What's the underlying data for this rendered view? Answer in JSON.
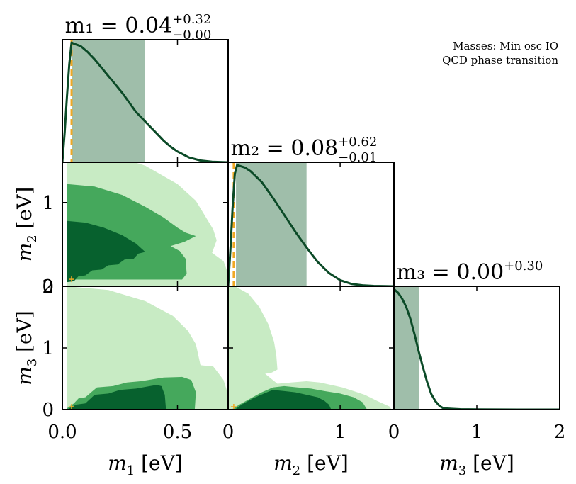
{
  "chart_data": {
    "type": "corner",
    "annotation": [
      "Masses: Min osc IO",
      "QCD phase transition"
    ],
    "colors": {
      "line": "#0b4a27",
      "band": "#9fbeaa",
      "truth": "#f0a824",
      "contour_outer": "#c8ebc4",
      "contour_mid": "#45a85c",
      "contour_inner": "#07612e",
      "frame": "#000000"
    },
    "parameters": [
      {
        "name": "m1",
        "label_var": "m",
        "label_sub": "1",
        "label_unit": " [eV]",
        "range": [
          0.0,
          0.72
        ],
        "ticks": [
          0.0,
          0.5
        ],
        "tick_labels": [
          "0.0",
          "0.5"
        ],
        "title_main": "m₁ = 0.04",
        "title_up": "+0.32",
        "title_down": "−0.00",
        "truth": 0.04,
        "band": [
          0.04,
          0.36
        ]
      },
      {
        "name": "m2",
        "label_var": "m",
        "label_sub": "2",
        "label_unit": " [eV]",
        "range": [
          0.0,
          1.48
        ],
        "ticks": [
          0,
          1
        ],
        "tick_labels": [
          "0",
          "1"
        ],
        "title_main": "m₂ = 0.08",
        "title_up": "+0.62",
        "title_down": "−0.01",
        "truth": 0.05,
        "band": [
          0.07,
          0.7
        ]
      },
      {
        "name": "m3",
        "label_var": "m",
        "label_sub": "3",
        "label_unit": " [eV]",
        "range": [
          0.0,
          2.0
        ],
        "ticks": [
          0,
          1,
          2
        ],
        "tick_labels": [
          "0",
          "1",
          "2"
        ],
        "title_main": "m₃ = 0.00",
        "title_up": "+0.30",
        "title_down": "",
        "truth": 0.0,
        "band": [
          0.0,
          0.3
        ]
      }
    ],
    "marginals": [
      {
        "param": "m1",
        "x": [
          0.0,
          0.01,
          0.02,
          0.03,
          0.04,
          0.05,
          0.08,
          0.11,
          0.14,
          0.17,
          0.2,
          0.23,
          0.26,
          0.29,
          0.32,
          0.35,
          0.38,
          0.41,
          0.44,
          0.47,
          0.5,
          0.55,
          0.6,
          0.65,
          0.72
        ],
        "density": [
          0.0,
          0.25,
          0.55,
          0.82,
          1.0,
          0.99,
          0.97,
          0.92,
          0.86,
          0.79,
          0.72,
          0.65,
          0.58,
          0.5,
          0.42,
          0.36,
          0.3,
          0.24,
          0.18,
          0.13,
          0.09,
          0.04,
          0.015,
          0.005,
          0.0
        ]
      },
      {
        "param": "m2",
        "x": [
          0.0,
          0.02,
          0.04,
          0.06,
          0.08,
          0.1,
          0.15,
          0.2,
          0.3,
          0.4,
          0.5,
          0.6,
          0.7,
          0.8,
          0.9,
          1.0,
          1.1,
          1.2,
          1.3,
          1.4,
          1.48
        ],
        "density": [
          0.0,
          0.3,
          0.65,
          0.93,
          1.0,
          0.995,
          0.98,
          0.95,
          0.86,
          0.73,
          0.59,
          0.45,
          0.32,
          0.2,
          0.11,
          0.05,
          0.02,
          0.008,
          0.003,
          0.001,
          0.0
        ]
      },
      {
        "param": "m3",
        "x": [
          0.0,
          0.05,
          0.1,
          0.15,
          0.2,
          0.25,
          0.3,
          0.35,
          0.4,
          0.45,
          0.5,
          0.55,
          0.6,
          0.8,
          1.0,
          1.5,
          2.0
        ],
        "density": [
          1.0,
          0.97,
          0.92,
          0.85,
          0.75,
          0.62,
          0.48,
          0.35,
          0.23,
          0.13,
          0.07,
          0.03,
          0.01,
          0.003,
          0.001,
          0.0,
          0.0
        ]
      }
    ],
    "contours": [
      {
        "x": "m1",
        "y": "m2",
        "levels": [
          {
            "level": "outer",
            "points": [
              [
                0.02,
                1.6
              ],
              [
                0.22,
                1.56
              ],
              [
                0.36,
                1.44
              ],
              [
                0.5,
                1.22
              ],
              [
                0.58,
                1.02
              ],
              [
                0.62,
                0.84
              ],
              [
                0.655,
                0.68
              ],
              [
                0.67,
                0.55
              ],
              [
                0.65,
                0.4
              ],
              [
                0.7,
                0.3
              ],
              [
                0.72,
                0.15
              ],
              [
                0.72,
                0.0
              ],
              [
                0.02,
                0.0
              ]
            ]
          },
          {
            "level": "mid",
            "points": [
              [
                0.02,
                1.22
              ],
              [
                0.14,
                1.19
              ],
              [
                0.26,
                1.09
              ],
              [
                0.36,
                0.95
              ],
              [
                0.44,
                0.82
              ],
              [
                0.5,
                0.7
              ],
              [
                0.535,
                0.64
              ],
              [
                0.58,
                0.6
              ],
              [
                0.53,
                0.53
              ],
              [
                0.47,
                0.48
              ],
              [
                0.51,
                0.42
              ],
              [
                0.535,
                0.33
              ],
              [
                0.54,
                0.15
              ],
              [
                0.52,
                0.08
              ],
              [
                0.02,
                0.08
              ]
            ]
          },
          {
            "level": "inner",
            "points": [
              [
                0.02,
                0.78
              ],
              [
                0.1,
                0.76
              ],
              [
                0.18,
                0.7
              ],
              [
                0.26,
                0.61
              ],
              [
                0.32,
                0.51
              ],
              [
                0.36,
                0.41
              ],
              [
                0.33,
                0.39
              ],
              [
                0.31,
                0.33
              ],
              [
                0.27,
                0.32
              ],
              [
                0.24,
                0.26
              ],
              [
                0.2,
                0.25
              ],
              [
                0.17,
                0.2
              ],
              [
                0.13,
                0.19
              ],
              [
                0.1,
                0.13
              ],
              [
                0.07,
                0.12
              ],
              [
                0.05,
                0.06
              ],
              [
                0.02,
                0.05
              ]
            ]
          }
        ]
      },
      {
        "x": "m1",
        "y": "m3",
        "levels": [
          {
            "level": "outer",
            "points": [
              [
                0.02,
                2.0
              ],
              [
                0.2,
                1.94
              ],
              [
                0.36,
                1.76
              ],
              [
                0.48,
                1.52
              ],
              [
                0.545,
                1.28
              ],
              [
                0.58,
                1.06
              ],
              [
                0.6,
                0.72
              ],
              [
                0.655,
                0.7
              ],
              [
                0.68,
                0.58
              ],
              [
                0.7,
                0.48
              ],
              [
                0.715,
                0.3
              ],
              [
                0.72,
                0.0
              ],
              [
                0.02,
                0.0
              ]
            ]
          },
          {
            "level": "mid",
            "points": [
              [
                0.02,
                0.02
              ],
              [
                0.05,
                0.1
              ],
              [
                0.07,
                0.18
              ],
              [
                0.1,
                0.2
              ],
              [
                0.15,
                0.36
              ],
              [
                0.22,
                0.38
              ],
              [
                0.28,
                0.44
              ],
              [
                0.34,
                0.46
              ],
              [
                0.44,
                0.52
              ],
              [
                0.52,
                0.53
              ],
              [
                0.56,
                0.48
              ],
              [
                0.58,
                0.28
              ],
              [
                0.575,
                0.0
              ],
              [
                0.02,
                0.0
              ]
            ]
          },
          {
            "level": "inner",
            "points": [
              [
                0.02,
                0.0
              ],
              [
                0.06,
                0.08
              ],
              [
                0.1,
                0.1
              ],
              [
                0.14,
                0.24
              ],
              [
                0.2,
                0.26
              ],
              [
                0.25,
                0.32
              ],
              [
                0.32,
                0.34
              ],
              [
                0.38,
                0.38
              ],
              [
                0.41,
                0.4
              ],
              [
                0.43,
                0.38
              ],
              [
                0.445,
                0.24
              ],
              [
                0.45,
                0.0
              ]
            ]
          }
        ]
      },
      {
        "x": "m2",
        "y": "m3",
        "levels": [
          {
            "level": "outer",
            "points": [
              [
                0.0,
                2.0
              ],
              [
                0.06,
                2.0
              ],
              [
                0.18,
                1.88
              ],
              [
                0.28,
                1.66
              ],
              [
                0.36,
                1.38
              ],
              [
                0.41,
                1.1
              ],
              [
                0.43,
                0.88
              ],
              [
                0.44,
                0.65
              ],
              [
                0.39,
                0.6
              ],
              [
                0.33,
                0.58
              ],
              [
                0.44,
                0.42
              ],
              [
                0.56,
                0.44
              ],
              [
                0.7,
                0.46
              ],
              [
                0.82,
                0.44
              ],
              [
                0.92,
                0.4
              ],
              [
                1.02,
                0.36
              ],
              [
                1.12,
                0.3
              ],
              [
                1.22,
                0.24
              ],
              [
                1.33,
                0.14
              ],
              [
                1.44,
                0.05
              ],
              [
                1.46,
                0.0
              ],
              [
                0.0,
                0.0
              ]
            ]
          },
          {
            "level": "mid",
            "points": [
              [
                0.03,
                0.0
              ],
              [
                0.1,
                0.08
              ],
              [
                0.2,
                0.18
              ],
              [
                0.3,
                0.28
              ],
              [
                0.4,
                0.36
              ],
              [
                0.5,
                0.38
              ],
              [
                0.62,
                0.36
              ],
              [
                0.74,
                0.34
              ],
              [
                0.86,
                0.3
              ],
              [
                1.0,
                0.26
              ],
              [
                1.12,
                0.2
              ],
              [
                1.2,
                0.12
              ],
              [
                1.24,
                0.0
              ]
            ]
          },
          {
            "level": "inner",
            "points": [
              [
                0.06,
                0.0
              ],
              [
                0.12,
                0.08
              ],
              [
                0.22,
                0.18
              ],
              [
                0.32,
                0.26
              ],
              [
                0.4,
                0.32
              ],
              [
                0.5,
                0.3
              ],
              [
                0.6,
                0.28
              ],
              [
                0.7,
                0.24
              ],
              [
                0.8,
                0.2
              ],
              [
                0.86,
                0.14
              ],
              [
                0.9,
                0.08
              ],
              [
                0.92,
                0.0
              ]
            ]
          }
        ]
      }
    ]
  }
}
